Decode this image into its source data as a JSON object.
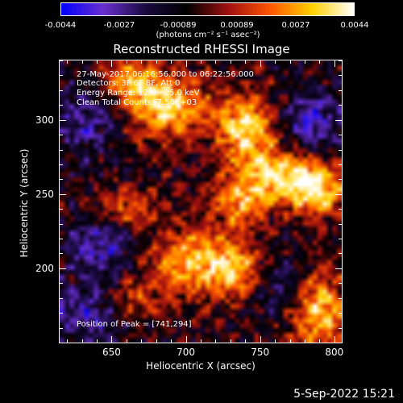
{
  "colorbar": {
    "labels": [
      "-0.0044",
      "-0.0027",
      "-0.00089",
      "0.00089",
      "0.0027",
      "0.0044"
    ],
    "unit": "(photons cm⁻² s⁻¹ asec⁻²)",
    "colors": [
      "#0000ff",
      "#6a2fd0",
      "#1a0a40",
      "#000000",
      "#a01010",
      "#ff5500",
      "#ffd000",
      "#ffffff"
    ]
  },
  "title": "Reconstructed RHESSI Image",
  "info": {
    "line1": "27-May-2017 06:16:56.000 to 06:22:56.000",
    "line2": "Detectors: 3F 6F 8F, Att 0",
    "line3": "Energy Range: 12.0 - 25.0 keV",
    "line4": "Clean     Total Counts: 7.50E+03",
    "peak": "Position of Peak = [741,294]"
  },
  "timestamp": "5-Sep-2022 15:21",
  "chart_data": {
    "type": "heatmap",
    "title": "Reconstructed RHESSI Image",
    "xlabel": "Heliocentric X (arcsec)",
    "ylabel": "Heliocentric Y (arcsec)",
    "xlim": [
      615,
      805
    ],
    "ylim": [
      150,
      340
    ],
    "xticks": [
      650,
      700,
      750,
      800
    ],
    "yticks": [
      200,
      250,
      300
    ],
    "value_range": [
      -0.0044,
      0.0044
    ],
    "peak": [
      741,
      294
    ],
    "bright_regions": [
      {
        "x": 688,
        "y": 308,
        "sx": 18,
        "sy": 14,
        "amp": 0.0042
      },
      {
        "x": 664,
        "y": 326,
        "sx": 14,
        "sy": 10,
        "amp": 0.0034
      },
      {
        "x": 741,
        "y": 294,
        "sx": 14,
        "sy": 16,
        "amp": 0.0044
      },
      {
        "x": 765,
        "y": 262,
        "sx": 18,
        "sy": 12,
        "amp": 0.0042
      },
      {
        "x": 790,
        "y": 252,
        "sx": 14,
        "sy": 12,
        "amp": 0.0036
      },
      {
        "x": 736,
        "y": 245,
        "sx": 12,
        "sy": 12,
        "amp": 0.003
      },
      {
        "x": 705,
        "y": 205,
        "sx": 22,
        "sy": 16,
        "amp": 0.0036
      },
      {
        "x": 660,
        "y": 240,
        "sx": 14,
        "sy": 10,
        "amp": 0.0026
      },
      {
        "x": 735,
        "y": 198,
        "sx": 14,
        "sy": 12,
        "amp": 0.0026
      },
      {
        "x": 790,
        "y": 170,
        "sx": 14,
        "sy": 18,
        "amp": 0.0038
      },
      {
        "x": 665,
        "y": 180,
        "sx": 12,
        "sy": 10,
        "amp": 0.002
      }
    ],
    "dark_regions": [
      {
        "x": 630,
        "y": 300,
        "sx": 16,
        "sy": 18,
        "amp": -0.002
      },
      {
        "x": 785,
        "y": 300,
        "sx": 14,
        "sy": 16,
        "amp": -0.0026
      },
      {
        "x": 645,
        "y": 215,
        "sx": 18,
        "sy": 14,
        "amp": -0.0024
      },
      {
        "x": 630,
        "y": 170,
        "sx": 18,
        "sy": 14,
        "amp": -0.0022
      },
      {
        "x": 760,
        "y": 190,
        "sx": 12,
        "sy": 14,
        "amp": -0.0018
      }
    ]
  }
}
